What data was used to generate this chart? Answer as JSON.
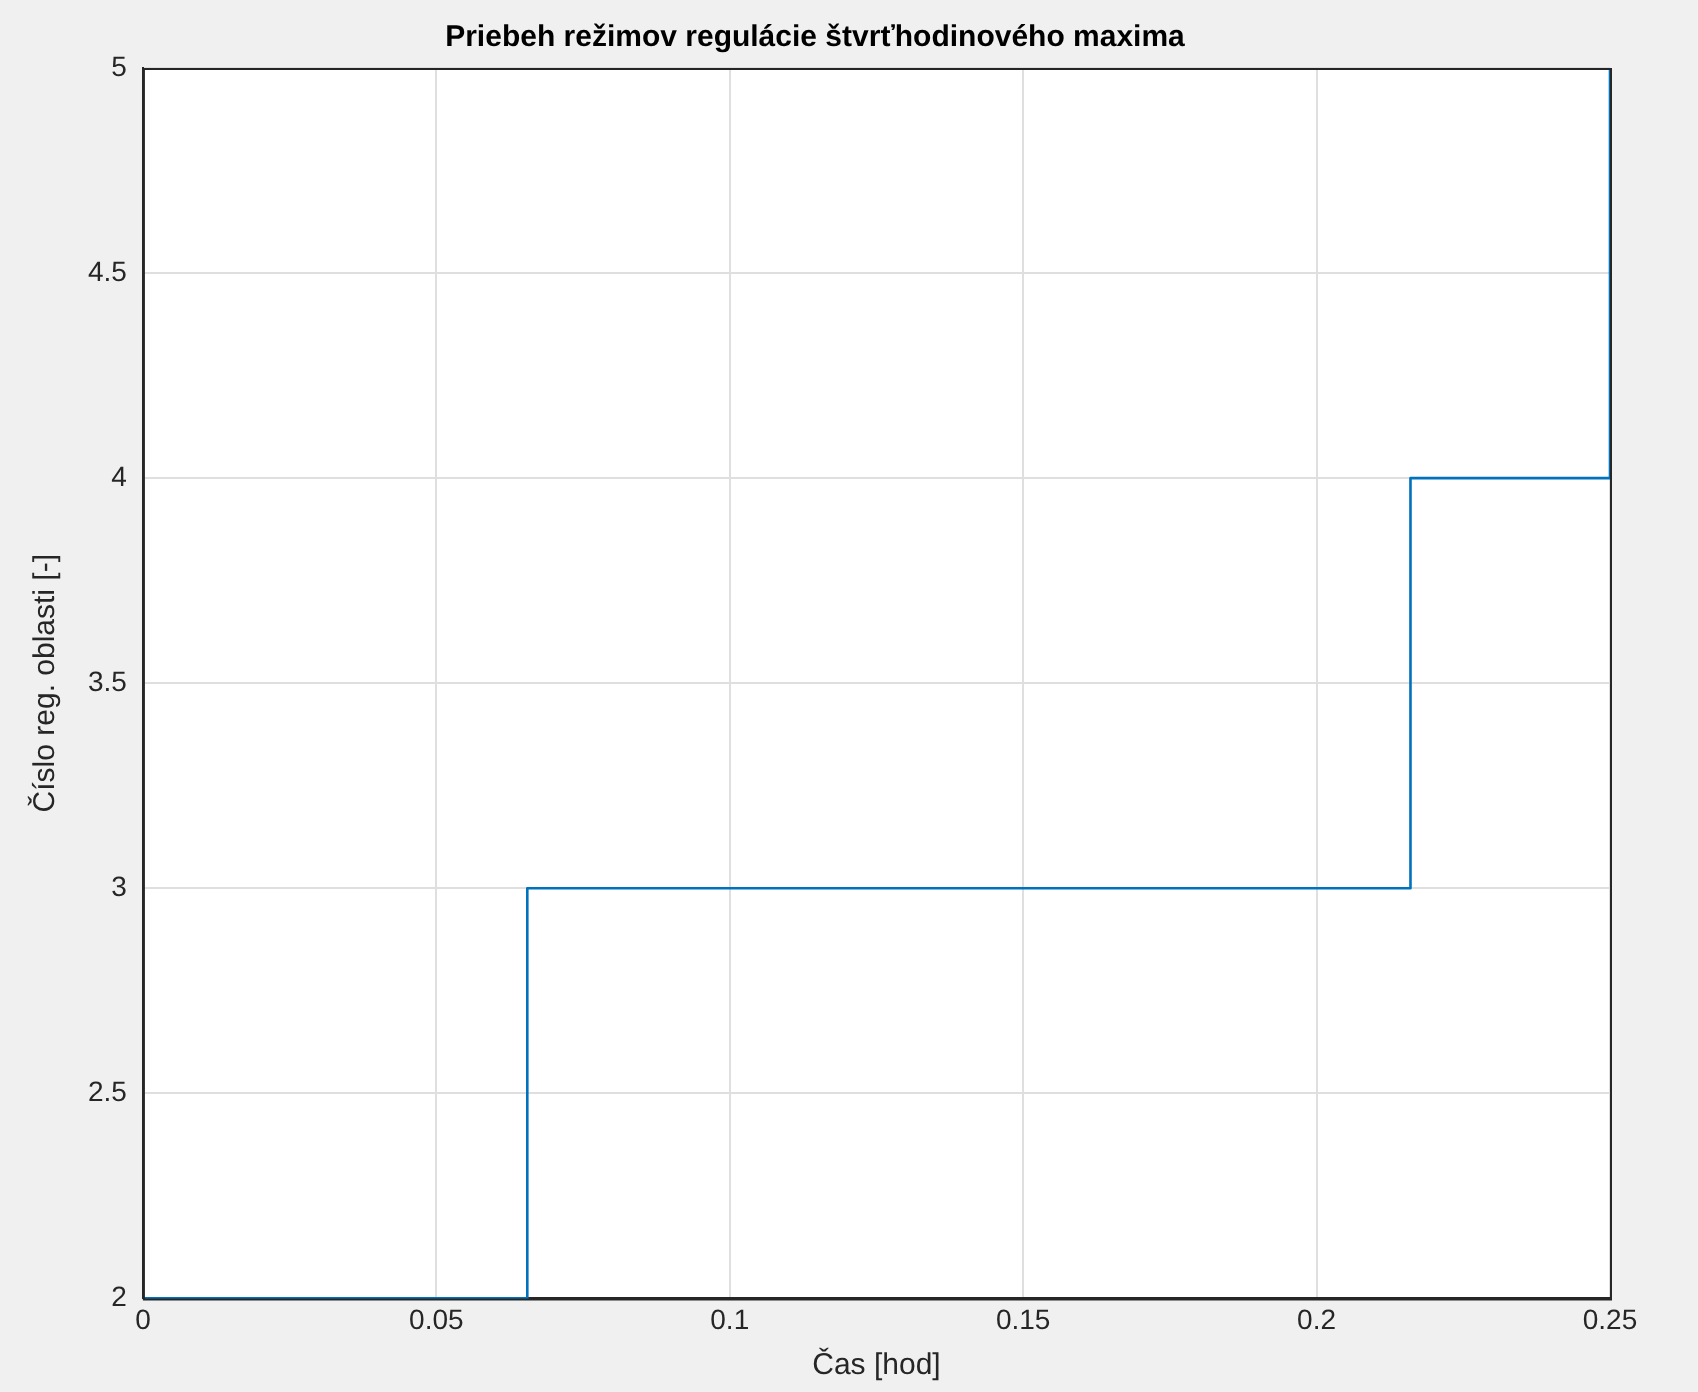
{
  "chart_data": {
    "type": "step",
    "title": "Priebeh režimov regulácie štvrťhodinového maxima",
    "xlabel": "Čas [hod]",
    "ylabel": "Číslo reg. oblasti [-]",
    "series": [
      {
        "color": "#0072bd",
        "x": [
          0,
          0.0655,
          0.216,
          0.25
        ],
        "values": [
          2,
          3,
          4,
          5
        ]
      }
    ],
    "xlim": [
      0,
      0.25
    ],
    "xticks": [
      0,
      0.05,
      0.1,
      0.15,
      0.2,
      0.25
    ],
    "ylim": [
      2,
      5
    ],
    "yticks": [
      2,
      2.5,
      3,
      3.5,
      4,
      4.5,
      5
    ],
    "grid": true
  }
}
